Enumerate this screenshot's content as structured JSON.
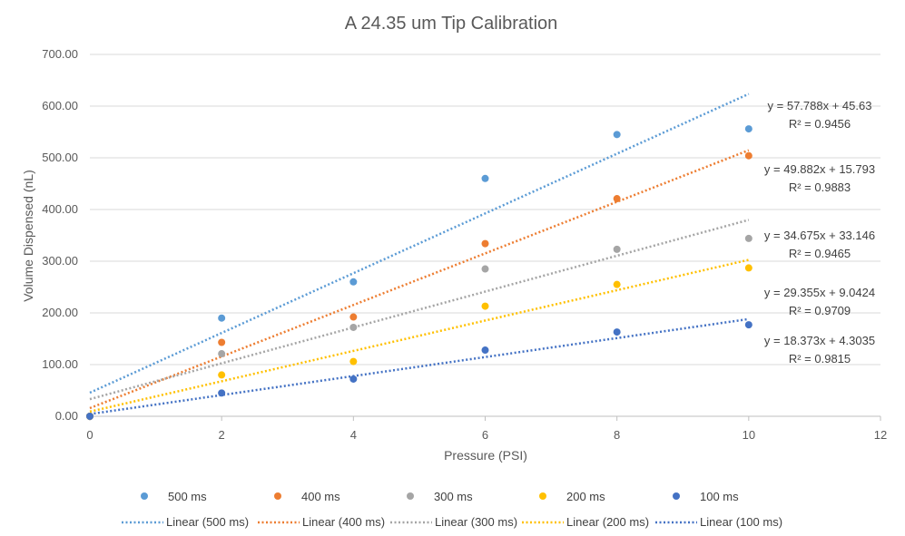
{
  "chart_data": {
    "type": "scatter",
    "title": "A 24.35 um Tip Calibration",
    "xlabel": "Pressure (PSI)",
    "ylabel": "Volume Dispensed (nL)",
    "xlim": [
      0,
      12
    ],
    "ylim": [
      0,
      700
    ],
    "x_ticks": [
      "0",
      "2",
      "4",
      "6",
      "8",
      "10",
      "12"
    ],
    "y_ticks": [
      "0.00",
      "100.00",
      "200.00",
      "300.00",
      "400.00",
      "500.00",
      "600.00",
      "700.00"
    ],
    "grid": "horizontal",
    "legend_position": "bottom",
    "x": [
      0,
      2,
      4,
      6,
      8,
      10
    ],
    "series": [
      {
        "name": "500 ms",
        "color": "#5B9BD5",
        "values": [
          0,
          190,
          260,
          460,
          545,
          556
        ],
        "trend_label": "Linear (500 ms)",
        "trend": {
          "slope": 57.788,
          "intercept": 45.63
        },
        "equation": "y = 57.788x + 45.63",
        "r2": "R² = 0.9456"
      },
      {
        "name": "400 ms",
        "color": "#ED7D31",
        "values": [
          0,
          143,
          192,
          334,
          421,
          504
        ],
        "trend_label": "Linear (400 ms)",
        "trend": {
          "slope": 49.882,
          "intercept": 15.793
        },
        "equation": "y = 49.882x + 15.793",
        "r2": "R² = 0.9883"
      },
      {
        "name": "300 ms",
        "color": "#A5A5A5",
        "values": [
          0,
          121,
          172,
          285,
          323,
          344
        ],
        "trend_label": "Linear (300 ms)",
        "trend": {
          "slope": 34.675,
          "intercept": 33.146
        },
        "equation": "y = 34.675x + 33.146",
        "r2": "R² = 0.9465"
      },
      {
        "name": "200 ms",
        "color": "#FFC000",
        "values": [
          0,
          80,
          106,
          213,
          255,
          287
        ],
        "trend_label": "Linear (200 ms)",
        "trend": {
          "slope": 29.355,
          "intercept": 9.0424
        },
        "equation": "y = 29.355x + 9.0424",
        "r2": "R² = 0.9709"
      },
      {
        "name": "100 ms",
        "color": "#4472C4",
        "values": [
          0,
          45,
          72,
          128,
          163,
          177
        ],
        "trend_label": "Linear (100 ms)",
        "trend": {
          "slope": 18.373,
          "intercept": 4.3035
        },
        "equation": "y = 18.373x + 4.3035",
        "r2": "R² = 0.9815"
      }
    ]
  }
}
